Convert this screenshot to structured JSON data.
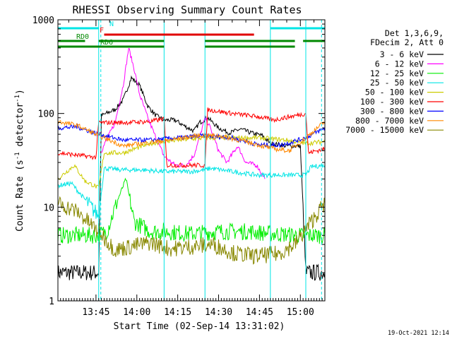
{
  "chart_data": {
    "type": "line",
    "title": "RHESSI Observing Summary Count Rates",
    "xlabel": "Start Time (02-Sep-14 13:31:02)",
    "ylabel": "Count Rate (s⁻¹ detector⁻¹)",
    "ylabel_parts": {
      "main": "Count Rate (s",
      "sup1": "-1",
      "mid": " detector",
      "sup2": "-1",
      "end": ")"
    },
    "yscale": "log",
    "ylim": [
      1,
      1000
    ],
    "xlim": [
      "13:31:02",
      "15:09:00"
    ],
    "x_ticks": [
      "13:45",
      "14:00",
      "14:15",
      "14:30",
      "14:45",
      "15:00"
    ],
    "y_ticks": [
      "1",
      "10",
      "100",
      "1000"
    ],
    "legend_header": [
      "Det 1,3,6,9,",
      "FDecim 2, Att 0"
    ],
    "legend_position": "right",
    "footer_date": "19-Oct-2021 12:14",
    "flags": [
      {
        "label": "N",
        "color": "#00e5e5",
        "segments": [
          [
            "13:31",
            "13:46"
          ],
          [
            "14:49",
            "15:09"
          ]
        ]
      },
      {
        "label": "F",
        "color": "#e00000",
        "segments": [
          [
            "13:48",
            "14:43"
          ]
        ]
      },
      {
        "label": "RD0",
        "color": "#008800",
        "segments": [
          [
            "13:31",
            "13:41"
          ],
          [
            "13:46",
            "14:10"
          ],
          [
            "14:25",
            "14:58"
          ],
          [
            "15:01",
            "15:09"
          ]
        ]
      },
      {
        "label": "RD6",
        "color": "#008800",
        "segments": [
          [
            "13:31",
            "14:10"
          ],
          [
            "14:25",
            "14:58"
          ]
        ]
      }
    ],
    "vlines_solid": [
      "13:46",
      "14:10",
      "14:25",
      "14:49",
      "15:02"
    ],
    "vlines_dashed": [
      "13:46",
      "15:07"
    ],
    "series": [
      {
        "name": "3 - 6 keV",
        "color": "#000000",
        "points": [
          [
            "13:31",
            2.0
          ],
          [
            "13:46",
            2.0
          ],
          [
            "13:47",
            95
          ],
          [
            "13:52",
            110
          ],
          [
            "13:55",
            140
          ],
          [
            "13:58",
            240
          ],
          [
            "14:01",
            200
          ],
          [
            "14:04",
            120
          ],
          [
            "14:07",
            95
          ],
          [
            "14:10",
            85
          ],
          [
            "14:14",
            85
          ],
          [
            "14:18",
            72
          ],
          [
            "14:21",
            65
          ],
          [
            "14:23",
            80
          ],
          [
            "14:26",
            90
          ],
          [
            "14:30",
            70
          ],
          [
            "14:34",
            62
          ],
          [
            "14:38",
            68
          ],
          [
            "14:42",
            62
          ],
          [
            "14:46",
            58
          ],
          [
            "14:49",
            48
          ],
          [
            "14:55",
            45
          ],
          [
            "15:00",
            45
          ],
          [
            "15:02",
            2.0
          ],
          [
            "15:09",
            2.0
          ]
        ]
      },
      {
        "name": "6 - 12 keV",
        "color": "#ff00ff",
        "points": [
          [
            "13:47",
            40
          ],
          [
            "13:52",
            80
          ],
          [
            "13:55",
            200
          ],
          [
            "13:57",
            500
          ],
          [
            "13:59",
            300
          ],
          [
            "14:01",
            160
          ],
          [
            "14:04",
            90
          ],
          [
            "14:07",
            55
          ],
          [
            "14:10",
            35
          ],
          [
            "14:14",
            28
          ],
          [
            "14:18",
            28
          ],
          [
            "14:21",
            36
          ],
          [
            "14:23",
            55
          ],
          [
            "14:25",
            90
          ],
          [
            "14:27",
            70
          ],
          [
            "14:30",
            40
          ],
          [
            "14:33",
            30
          ],
          [
            "14:37",
            45
          ],
          [
            "14:40",
            30
          ],
          [
            "14:44",
            28
          ],
          [
            "14:47",
            20
          ]
        ]
      },
      {
        "name": "12 - 25 keV",
        "color": "#00ee00",
        "points": [
          [
            "13:31",
            5.0
          ],
          [
            "13:45",
            5.0
          ],
          [
            "13:49",
            5.5
          ],
          [
            "13:53",
            12
          ],
          [
            "13:56",
            20
          ],
          [
            "13:59",
            7
          ],
          [
            "14:05",
            5.5
          ],
          [
            "14:10",
            5.5
          ],
          [
            "14:20",
            5.2
          ],
          [
            "14:30",
            5.5
          ],
          [
            "14:40",
            5.5
          ],
          [
            "14:50",
            5.2
          ],
          [
            "15:00",
            5.0
          ],
          [
            "15:09",
            5.0
          ]
        ]
      },
      {
        "name": "25 - 50 keV",
        "color": "#00e5e5",
        "points": [
          [
            "13:31",
            17
          ],
          [
            "13:36",
            18
          ],
          [
            "13:41",
            12
          ],
          [
            "13:46",
            8
          ],
          [
            "13:48",
            26
          ],
          [
            "13:55",
            25
          ],
          [
            "14:02",
            25
          ],
          [
            "14:10",
            24
          ],
          [
            "14:12",
            24
          ],
          [
            "14:20",
            24
          ],
          [
            "14:25",
            25
          ],
          [
            "14:27",
            26
          ],
          [
            "14:35",
            24
          ],
          [
            "14:44",
            22
          ],
          [
            "14:52",
            22
          ],
          [
            "15:02",
            22
          ],
          [
            "15:04",
            27
          ],
          [
            "15:09",
            28
          ]
        ]
      },
      {
        "name": "50 - 100 keV",
        "color": "#cccc00",
        "points": [
          [
            "13:31",
            20
          ],
          [
            "13:37",
            28
          ],
          [
            "13:41",
            19
          ],
          [
            "13:46",
            16
          ],
          [
            "13:48",
            38
          ],
          [
            "13:55",
            38
          ],
          [
            "14:05",
            48
          ],
          [
            "14:15",
            52
          ],
          [
            "14:25",
            55
          ],
          [
            "14:35",
            55
          ],
          [
            "14:45",
            55
          ],
          [
            "14:55",
            52
          ],
          [
            "15:02",
            48
          ],
          [
            "15:09",
            50
          ]
        ]
      },
      {
        "name": "100 - 300 keV",
        "color": "#ff0000",
        "points": [
          [
            "13:31",
            38
          ],
          [
            "13:45",
            34
          ],
          [
            "13:46",
            80
          ],
          [
            "13:55",
            80
          ],
          [
            "14:05",
            82
          ],
          [
            "14:10",
            88
          ],
          [
            "14:11",
            28
          ],
          [
            "14:25",
            28
          ],
          [
            "14:26",
            110
          ],
          [
            "14:35",
            100
          ],
          [
            "14:45",
            92
          ],
          [
            "14:50",
            85
          ],
          [
            "15:02",
            100
          ],
          [
            "15:03",
            38
          ],
          [
            "15:09",
            42
          ]
        ]
      },
      {
        "name": "300 - 800 keV",
        "color": "#0000ff",
        "points": [
          [
            "13:31",
            70
          ],
          [
            "13:38",
            72
          ],
          [
            "13:46",
            60
          ],
          [
            "13:55",
            52
          ],
          [
            "14:05",
            52
          ],
          [
            "14:15",
            55
          ],
          [
            "14:25",
            58
          ],
          [
            "14:35",
            55
          ],
          [
            "14:45",
            46
          ],
          [
            "14:53",
            46
          ],
          [
            "15:02",
            55
          ],
          [
            "15:09",
            70
          ]
        ]
      },
      {
        "name": "800 - 7000 keV",
        "color": "#ff8800",
        "points": [
          [
            "13:31",
            82
          ],
          [
            "13:38",
            75
          ],
          [
            "13:46",
            58
          ],
          [
            "13:55",
            45
          ],
          [
            "14:02",
            48
          ],
          [
            "14:12",
            52
          ],
          [
            "14:22",
            58
          ],
          [
            "14:30",
            58
          ],
          [
            "14:40",
            50
          ],
          [
            "14:50",
            42
          ],
          [
            "14:56",
            40
          ],
          [
            "15:02",
            55
          ],
          [
            "15:09",
            82
          ]
        ]
      },
      {
        "name": "7000 - 15000 keV",
        "color": "#888800",
        "points": [
          [
            "13:31",
            11
          ],
          [
            "13:38",
            9
          ],
          [
            "13:46",
            5.5
          ],
          [
            "13:52",
            3.5
          ],
          [
            "13:58",
            3.8
          ],
          [
            "14:05",
            4.2
          ],
          [
            "14:12",
            3.6
          ],
          [
            "14:20",
            3.8
          ],
          [
            "14:28",
            4.0
          ],
          [
            "14:36",
            3.2
          ],
          [
            "14:44",
            3.0
          ],
          [
            "14:52",
            3.2
          ],
          [
            "14:58",
            4.0
          ],
          [
            "15:04",
            7
          ],
          [
            "15:09",
            11
          ]
        ]
      }
    ]
  }
}
